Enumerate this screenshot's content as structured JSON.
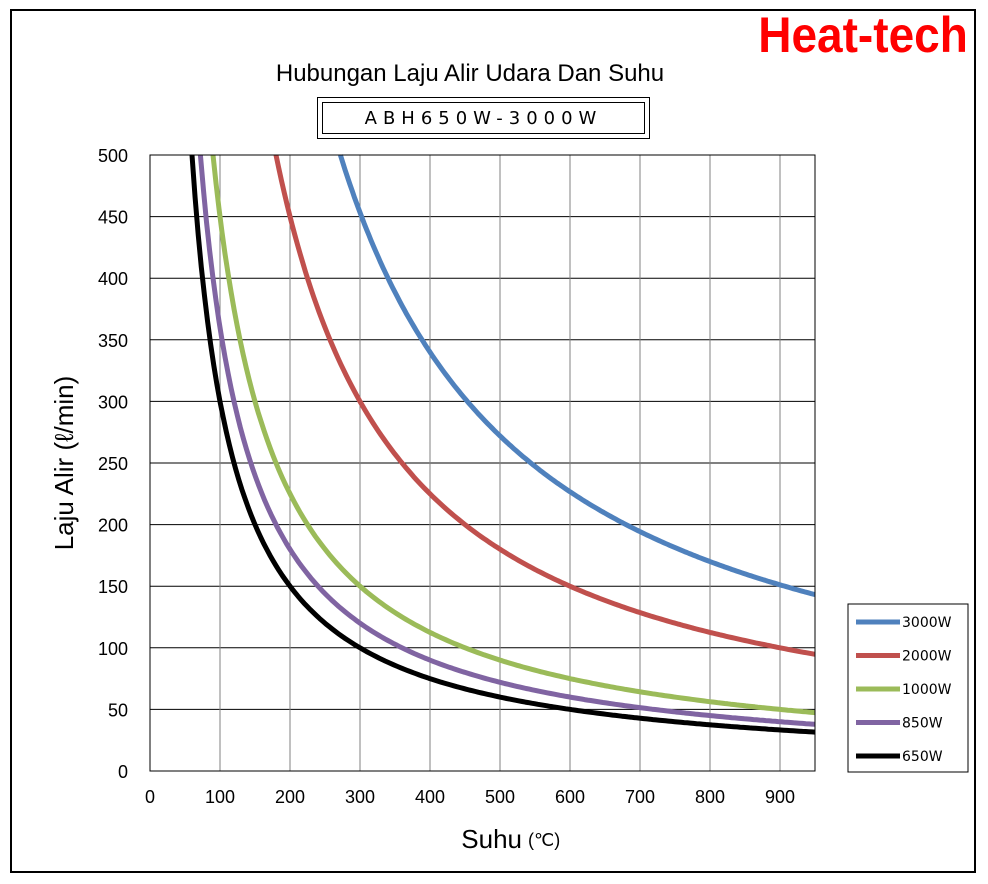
{
  "brand": {
    "text": "Heat-tech",
    "color": "#ff0000"
  },
  "chart_data": {
    "type": "line",
    "title": "Hubungan Laju Alir Udara Dan Suhu",
    "subtitle": "ABH650W-3000W",
    "xlabel": "Suhu",
    "xlabel_unit": "(℃)",
    "ylabel": "Laju Alir (ℓ/min)",
    "xlim": [
      0,
      950
    ],
    "ylim": [
      0,
      500
    ],
    "xticks": [
      0,
      100,
      200,
      300,
      400,
      500,
      600,
      700,
      800,
      900
    ],
    "yticks": [
      0,
      50,
      100,
      150,
      200,
      250,
      300,
      350,
      400,
      450,
      500
    ],
    "grid": true,
    "legend_position": "bottom-right outside",
    "series": [
      {
        "name": "3000W",
        "color": "#4f81bd",
        "k": 136000
      },
      {
        "name": "2000W",
        "color": "#c0504d",
        "k": 90000
      },
      {
        "name": "1000W",
        "color": "#9bbb59",
        "k": 45000
      },
      {
        "name": "850W",
        "color": "#8064a2",
        "k": 36000
      },
      {
        "name": "650W",
        "color": "#000000",
        "k": 30000
      }
    ],
    "x_sample": [
      60,
      70,
      80,
      90,
      100,
      120,
      150,
      200,
      250,
      300,
      400,
      500,
      600,
      700,
      800,
      900,
      950
    ]
  }
}
